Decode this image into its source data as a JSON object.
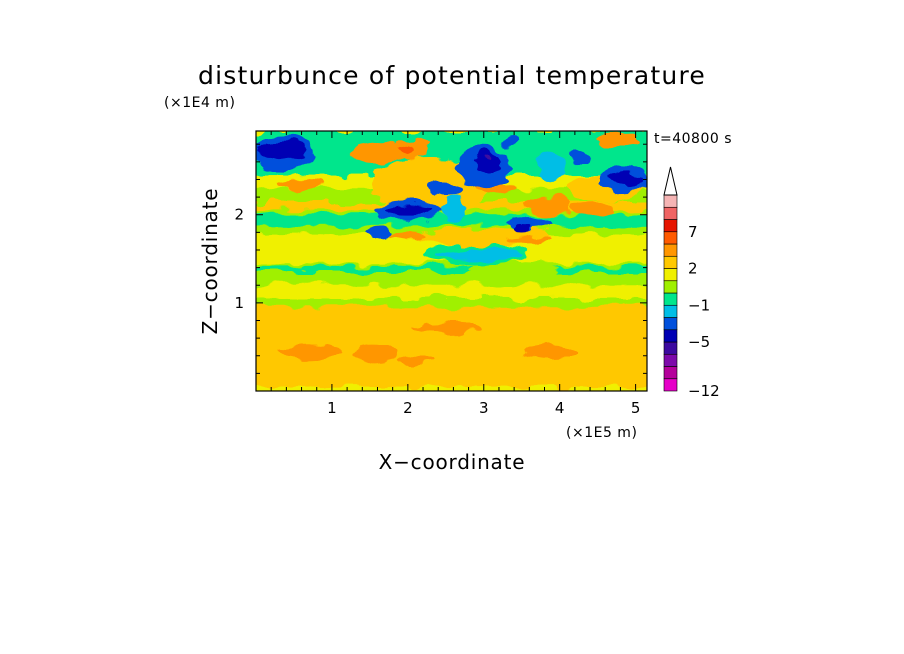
{
  "chart_data": {
    "type": "heatmap",
    "title": "disturbunce of potential temperature",
    "xlabel": "X−coordinate",
    "ylabel": "Z−coordinate",
    "x_unit": "(×1E5 m)",
    "y_unit": "(×1E4 m)",
    "time_label": "t=40800 s",
    "xlim": [
      0,
      5.15
    ],
    "ylim": [
      0,
      2.95
    ],
    "x_ticks": [
      {
        "value": 1,
        "label": "1"
      },
      {
        "value": 2,
        "label": "2"
      },
      {
        "value": 3,
        "label": "3"
      },
      {
        "value": 4,
        "label": "4"
      },
      {
        "value": 5,
        "label": "5"
      }
    ],
    "y_ticks": [
      {
        "value": 1,
        "label": "1"
      },
      {
        "value": 2,
        "label": "2"
      }
    ],
    "colorbar": {
      "levels": [
        -12,
        -10,
        -8,
        -6,
        -5,
        -4,
        -2,
        -1,
        0,
        1,
        2,
        3,
        5,
        7,
        8,
        9,
        10
      ],
      "colors": [
        "#e600c8",
        "#b4009b",
        "#7d0aaa",
        "#3c0aa0",
        "#0000b4",
        "#0050dc",
        "#00bee6",
        "#00e68c",
        "#a0f000",
        "#f0f000",
        "#ffc800",
        "#ff9600",
        "#ff5a00",
        "#e61400",
        "#f06464",
        "#f5b4b4"
      ],
      "extend_color": "#ffffff",
      "labels": [
        {
          "value": -12,
          "label": "−12"
        },
        {
          "value": -5,
          "label": "−5"
        },
        {
          "value": -1,
          "label": "−1"
        },
        {
          "value": 2,
          "label": "2"
        },
        {
          "value": 7,
          "label": "7"
        }
      ]
    },
    "background_color": "#f0f000",
    "regions": [
      {
        "value": 2.5,
        "color": "#ffc800",
        "x": [
          0,
          5.15
        ],
        "z": [
          0.05,
          0.97
        ]
      },
      {
        "value": 0.5,
        "color": "#a0f000",
        "x": [
          0,
          5.15
        ],
        "z": [
          0.95,
          1.05
        ]
      },
      {
        "value": 0.5,
        "color": "#a0f000",
        "x": [
          0,
          5.15
        ],
        "z": [
          1.2,
          1.45
        ]
      },
      {
        "value": -0.5,
        "color": "#00e68c",
        "x": [
          0,
          5.15
        ],
        "z": [
          1.35,
          1.42
        ]
      },
      {
        "value": 0.5,
        "color": "#a0f000",
        "x": [
          0,
          5.15
        ],
        "z": [
          1.78,
          2.3
        ]
      },
      {
        "value": -0.5,
        "color": "#00e68c",
        "x": [
          0,
          5.15
        ],
        "z": [
          1.88,
          2.0
        ]
      },
      {
        "value": -0.5,
        "color": "#00e68c",
        "x": [
          0,
          5.15
        ],
        "z": [
          2.45,
          2.95
        ]
      },
      {
        "value": 2.5,
        "color": "#ffc800",
        "x": [
          0,
          5.15
        ],
        "z": [
          2.05,
          2.15
        ]
      }
    ],
    "features": [
      {
        "value": 4,
        "color": "#ff9600",
        "cx": 0.7,
        "cz": 0.45,
        "rx": 0.4,
        "rz": 0.08
      },
      {
        "value": 4,
        "color": "#ff9600",
        "cx": 1.55,
        "cz": 0.42,
        "rx": 0.3,
        "rz": 0.1
      },
      {
        "value": 4,
        "color": "#ff9600",
        "cx": 2.5,
        "cz": 0.72,
        "rx": 0.45,
        "rz": 0.06
      },
      {
        "value": 4,
        "color": "#ff9600",
        "cx": 3.9,
        "cz": 0.45,
        "rx": 0.35,
        "rz": 0.07
      },
      {
        "value": 4,
        "color": "#ff9600",
        "cx": 2.1,
        "cz": 0.35,
        "rx": 0.25,
        "rz": 0.05
      },
      {
        "value": 0.5,
        "color": "#a0f000",
        "cx": 3.4,
        "cz": 1.38,
        "rx": 0.6,
        "rz": 0.08
      },
      {
        "value": -0.5,
        "color": "#00e68c",
        "cx": 2.9,
        "cz": 1.55,
        "rx": 0.7,
        "rz": 0.12
      },
      {
        "value": -1.5,
        "color": "#00bee6",
        "cx": 2.95,
        "cz": 1.55,
        "rx": 0.6,
        "rz": 0.07
      },
      {
        "value": 2.5,
        "color": "#ffc800",
        "cx": 2.3,
        "cz": 2.35,
        "rx": 0.8,
        "rz": 0.3
      },
      {
        "value": 4,
        "color": "#ff9600",
        "cx": 1.6,
        "cz": 2.7,
        "rx": 0.35,
        "rz": 0.12
      },
      {
        "value": 4,
        "color": "#ff9600",
        "cx": 2.05,
        "cz": 2.75,
        "rx": 0.2,
        "rz": 0.12
      },
      {
        "value": 6,
        "color": "#ff5a00",
        "cx": 2.0,
        "cz": 2.75,
        "rx": 0.08,
        "rz": 0.05
      },
      {
        "value": 4,
        "color": "#ff9600",
        "cx": 3.15,
        "cz": 2.3,
        "rx": 0.25,
        "rz": 0.1
      },
      {
        "value": 4,
        "color": "#ff9600",
        "cx": 3.85,
        "cz": 2.1,
        "rx": 0.3,
        "rz": 0.1
      },
      {
        "value": 4,
        "color": "#ff9600",
        "cx": 4.45,
        "cz": 2.05,
        "rx": 0.3,
        "rz": 0.08
      },
      {
        "value": 2.5,
        "color": "#ffc800",
        "cx": 4.6,
        "cz": 2.3,
        "rx": 0.5,
        "rz": 0.15
      },
      {
        "value": 2.5,
        "color": "#ffc800",
        "cx": 3.0,
        "cz": 1.75,
        "rx": 0.9,
        "rz": 0.1
      },
      {
        "value": 4,
        "color": "#ff9600",
        "cx": 3.6,
        "cz": 1.72,
        "rx": 0.3,
        "rz": 0.05
      },
      {
        "value": 4,
        "color": "#ff9600",
        "cx": 2.0,
        "cz": 1.75,
        "rx": 0.25,
        "rz": 0.05
      },
      {
        "value": -4.5,
        "color": "#0050dc",
        "cx": 0.35,
        "cz": 2.7,
        "rx": 0.42,
        "rz": 0.2
      },
      {
        "value": -5.5,
        "color": "#0000b4",
        "cx": 0.35,
        "cz": 2.72,
        "rx": 0.3,
        "rz": 0.12
      },
      {
        "value": -4.5,
        "color": "#0050dc",
        "cx": 4.85,
        "cz": 2.4,
        "rx": 0.32,
        "rz": 0.15
      },
      {
        "value": -5.5,
        "color": "#0000b4",
        "cx": 4.88,
        "cz": 2.4,
        "rx": 0.22,
        "rz": 0.08
      },
      {
        "value": -4.5,
        "color": "#0050dc",
        "cx": 2.0,
        "cz": 2.05,
        "rx": 0.45,
        "rz": 0.12
      },
      {
        "value": -5.5,
        "color": "#0000b4",
        "cx": 2.0,
        "cz": 2.05,
        "rx": 0.32,
        "rz": 0.06
      },
      {
        "value": -4.5,
        "color": "#0050dc",
        "cx": 1.6,
        "cz": 1.8,
        "rx": 0.2,
        "rz": 0.06
      },
      {
        "value": -4.5,
        "color": "#0050dc",
        "cx": 2.5,
        "cz": 2.3,
        "rx": 0.22,
        "rz": 0.1
      },
      {
        "value": -4.5,
        "color": "#0050dc",
        "cx": 3.0,
        "cz": 2.55,
        "rx": 0.35,
        "rz": 0.25
      },
      {
        "value": -5.5,
        "color": "#0000b4",
        "cx": 3.05,
        "cz": 2.6,
        "rx": 0.18,
        "rz": 0.12
      },
      {
        "value": -7,
        "color": "#3c0aa0",
        "cx": 3.05,
        "cz": 2.65,
        "rx": 0.05,
        "rz": 0.03
      },
      {
        "value": -4.5,
        "color": "#0050dc",
        "cx": 3.6,
        "cz": 1.9,
        "rx": 0.3,
        "rz": 0.08
      },
      {
        "value": -5.5,
        "color": "#0000b4",
        "cx": 3.5,
        "cz": 1.85,
        "rx": 0.12,
        "rz": 0.04
      },
      {
        "value": -4.5,
        "color": "#0050dc",
        "cx": 4.25,
        "cz": 2.65,
        "rx": 0.1,
        "rz": 0.08
      },
      {
        "value": -4.5,
        "color": "#0050dc",
        "cx": 3.35,
        "cz": 2.85,
        "rx": 0.12,
        "rz": 0.07
      },
      {
        "value": -1.5,
        "color": "#00bee6",
        "cx": 2.6,
        "cz": 2.05,
        "rx": 0.15,
        "rz": 0.15
      },
      {
        "value": -1.5,
        "color": "#00bee6",
        "cx": 3.9,
        "cz": 2.55,
        "rx": 0.2,
        "rz": 0.15
      },
      {
        "value": 4,
        "color": "#ff9600",
        "cx": 0.6,
        "cz": 2.35,
        "rx": 0.3,
        "rz": 0.06
      },
      {
        "value": 4,
        "color": "#ff9600",
        "cx": 4.75,
        "cz": 2.85,
        "rx": 0.3,
        "rz": 0.08
      }
    ]
  }
}
